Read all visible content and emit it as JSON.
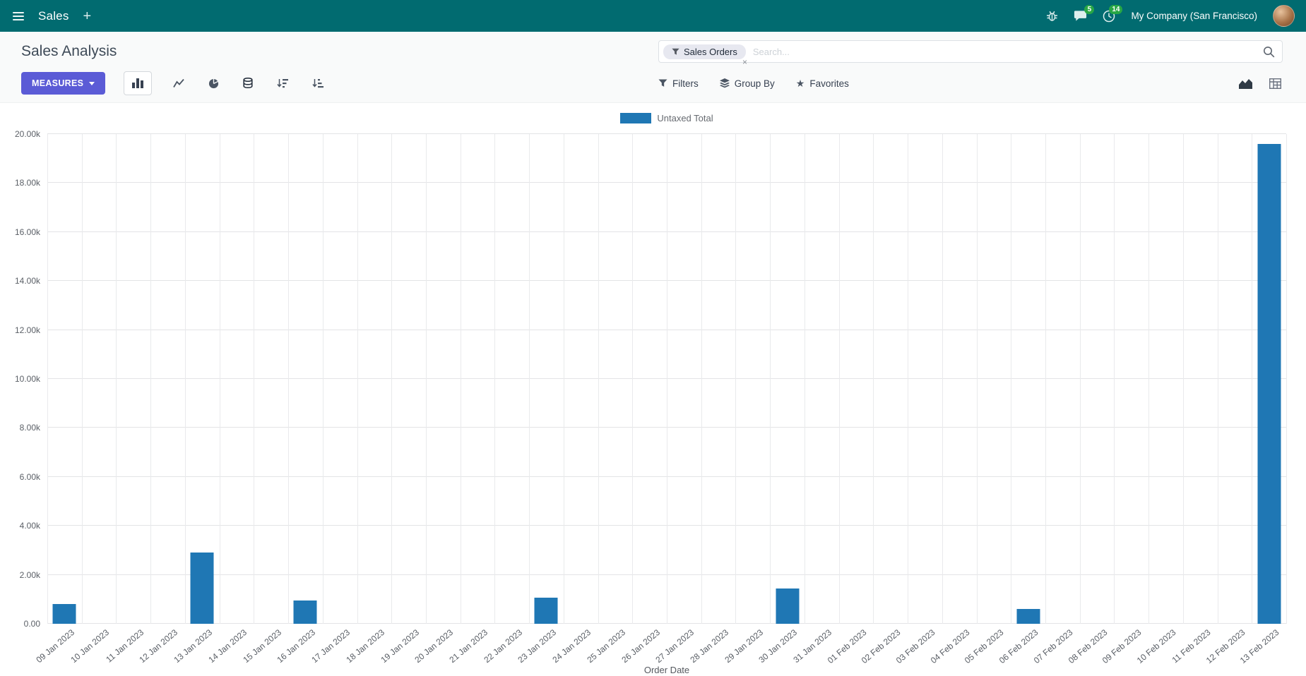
{
  "navbar": {
    "app_name": "Sales",
    "plus_glyph": "+",
    "messages_badge": "5",
    "activities_badge": "14",
    "company": "My Company (San Francisco)"
  },
  "control_panel": {
    "title": "Sales Analysis",
    "search": {
      "facet": "Sales Orders",
      "facet_remove": "×",
      "placeholder": "Search..."
    },
    "toolbar": {
      "measures_label": "MEASURES",
      "filters_label": "Filters",
      "group_by_label": "Group By",
      "favorites_label": "Favorites"
    }
  },
  "icons": {
    "star": "★"
  },
  "colors": {
    "navbar_bg": "#016b70",
    "primary_button": "#5b5bd6",
    "badge_green": "#28a745",
    "bar_blue": "#1f77b4"
  },
  "chart_data": {
    "type": "bar",
    "title": "",
    "legend": [
      "Untaxed Total"
    ],
    "series_color": "#1f77b4",
    "xlabel": "Order Date",
    "ylabel": "",
    "ylim": [
      0,
      20000
    ],
    "grid": true,
    "legend_position": "top-center",
    "y_tick_labels": [
      "0.00",
      "2.00k",
      "4.00k",
      "6.00k",
      "8.00k",
      "10.00k",
      "12.00k",
      "14.00k",
      "16.00k",
      "18.00k",
      "20.00k"
    ],
    "categories": [
      "09 Jan 2023",
      "10 Jan 2023",
      "11 Jan 2023",
      "12 Jan 2023",
      "13 Jan 2023",
      "14 Jan 2023",
      "15 Jan 2023",
      "16 Jan 2023",
      "17 Jan 2023",
      "18 Jan 2023",
      "19 Jan 2023",
      "20 Jan 2023",
      "21 Jan 2023",
      "22 Jan 2023",
      "23 Jan 2023",
      "24 Jan 2023",
      "25 Jan 2023",
      "26 Jan 2023",
      "27 Jan 2023",
      "28 Jan 2023",
      "29 Jan 2023",
      "30 Jan 2023",
      "31 Jan 2023",
      "01 Feb 2023",
      "02 Feb 2023",
      "03 Feb 2023",
      "04 Feb 2023",
      "05 Feb 2023",
      "06 Feb 2023",
      "07 Feb 2023",
      "08 Feb 2023",
      "09 Feb 2023",
      "10 Feb 2023",
      "11 Feb 2023",
      "12 Feb 2023",
      "13 Feb 2023"
    ],
    "values": [
      800,
      0,
      0,
      0,
      2900,
      0,
      0,
      950,
      0,
      0,
      0,
      0,
      0,
      0,
      1080,
      0,
      0,
      0,
      0,
      0,
      0,
      1450,
      0,
      0,
      0,
      0,
      0,
      0,
      620,
      0,
      0,
      0,
      0,
      0,
      0,
      19600
    ]
  }
}
